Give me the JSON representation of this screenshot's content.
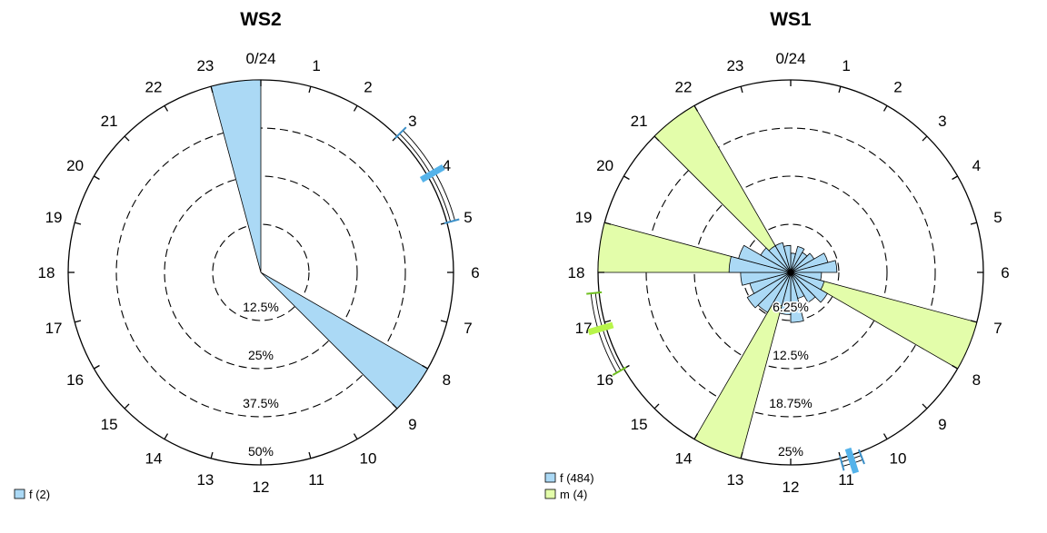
{
  "chart_data": [
    {
      "type": "rose",
      "title": "WS2",
      "theta_labels": [
        "0/24",
        "1",
        "2",
        "3",
        "4",
        "5",
        "6",
        "7",
        "8",
        "9",
        "10",
        "11",
        "12",
        "13",
        "14",
        "15",
        "16",
        "17",
        "18",
        "19",
        "20",
        "21",
        "22",
        "23"
      ],
      "radial_ticks": [
        12.5,
        25,
        37.5,
        50
      ],
      "radial_tick_labels": [
        "12.5%",
        "25%",
        "37.5%",
        "50%"
      ],
      "rmax": 50,
      "series": [
        {
          "name": "f (2)",
          "color": "#abd9f5",
          "bins": [
            {
              "start_hour": 23,
              "end_hour": 24,
              "percent": 50
            },
            {
              "start_hour": 8,
              "end_hour": 9,
              "percent": 50
            }
          ],
          "mean_hour": 4.0,
          "ci_hours": [
            3.0,
            5.0
          ]
        }
      ],
      "legend": [
        "f (2)"
      ],
      "legend_position": "bottom-left"
    },
    {
      "type": "rose",
      "title": "WS1",
      "theta_labels": [
        "0/24",
        "1",
        "2",
        "3",
        "4",
        "5",
        "6",
        "7",
        "8",
        "9",
        "10",
        "11",
        "12",
        "13",
        "14",
        "15",
        "16",
        "17",
        "18",
        "19",
        "20",
        "21",
        "22",
        "23"
      ],
      "radial_ticks": [
        6.25,
        12.5,
        18.75,
        25
      ],
      "radial_tick_labels": [
        "6.25%",
        "12.5%",
        "18.75%",
        "25%"
      ],
      "rmax": 25,
      "series": [
        {
          "name": "m (4)",
          "color": "#e3fdaa",
          "bins": [
            {
              "start_hour": 7,
              "end_hour": 8,
              "percent": 25
            },
            {
              "start_hour": 13,
              "end_hour": 14,
              "percent": 25
            },
            {
              "start_hour": 18,
              "end_hour": 19,
              "percent": 25
            },
            {
              "start_hour": 21,
              "end_hour": 22,
              "percent": 25
            }
          ],
          "mean_hour": 16.9,
          "ci_hours": [
            16.0,
            17.6
          ]
        },
        {
          "name": "f (484)",
          "color": "#abd9f5",
          "bins": [
            {
              "start_hour": 0,
              "end_hour": 1,
              "percent": 2.5
            },
            {
              "start_hour": 1,
              "end_hour": 2,
              "percent": 3.5
            },
            {
              "start_hour": 2,
              "end_hour": 3,
              "percent": 3.0
            },
            {
              "start_hour": 3,
              "end_hour": 4,
              "percent": 3.5
            },
            {
              "start_hour": 4,
              "end_hour": 5,
              "percent": 5.0
            },
            {
              "start_hour": 5,
              "end_hour": 6,
              "percent": 6.0
            },
            {
              "start_hour": 6,
              "end_hour": 7,
              "percent": 4.0
            },
            {
              "start_hour": 7,
              "end_hour": 8,
              "percent": 4.5
            },
            {
              "start_hour": 8,
              "end_hour": 9,
              "percent": 5.5
            },
            {
              "start_hour": 9,
              "end_hour": 10,
              "percent": 4.5
            },
            {
              "start_hour": 10,
              "end_hour": 11,
              "percent": 3.5
            },
            {
              "start_hour": 11,
              "end_hour": 12,
              "percent": 6.5
            },
            {
              "start_hour": 12,
              "end_hour": 13,
              "percent": 5.5
            },
            {
              "start_hour": 13,
              "end_hour": 14,
              "percent": 4.5
            },
            {
              "start_hour": 14,
              "end_hour": 15,
              "percent": 6.0
            },
            {
              "start_hour": 15,
              "end_hour": 16,
              "percent": 6.5
            },
            {
              "start_hour": 16,
              "end_hour": 17,
              "percent": 5.5
            },
            {
              "start_hour": 17,
              "end_hour": 18,
              "percent": 6.5
            },
            {
              "start_hour": 18,
              "end_hour": 19,
              "percent": 8.0
            },
            {
              "start_hour": 19,
              "end_hour": 20,
              "percent": 7.0
            },
            {
              "start_hour": 20,
              "end_hour": 21,
              "percent": 4.5
            },
            {
              "start_hour": 21,
              "end_hour": 22,
              "percent": 4.0
            },
            {
              "start_hour": 22,
              "end_hour": 23,
              "percent": 4.0
            },
            {
              "start_hour": 23,
              "end_hour": 24,
              "percent": 3.5
            }
          ],
          "mean_hour": 10.8,
          "ci_hours": [
            10.6,
            11.0
          ]
        }
      ],
      "legend": [
        "f (484)",
        "m (4)"
      ],
      "legend_position": "bottom-left"
    }
  ]
}
